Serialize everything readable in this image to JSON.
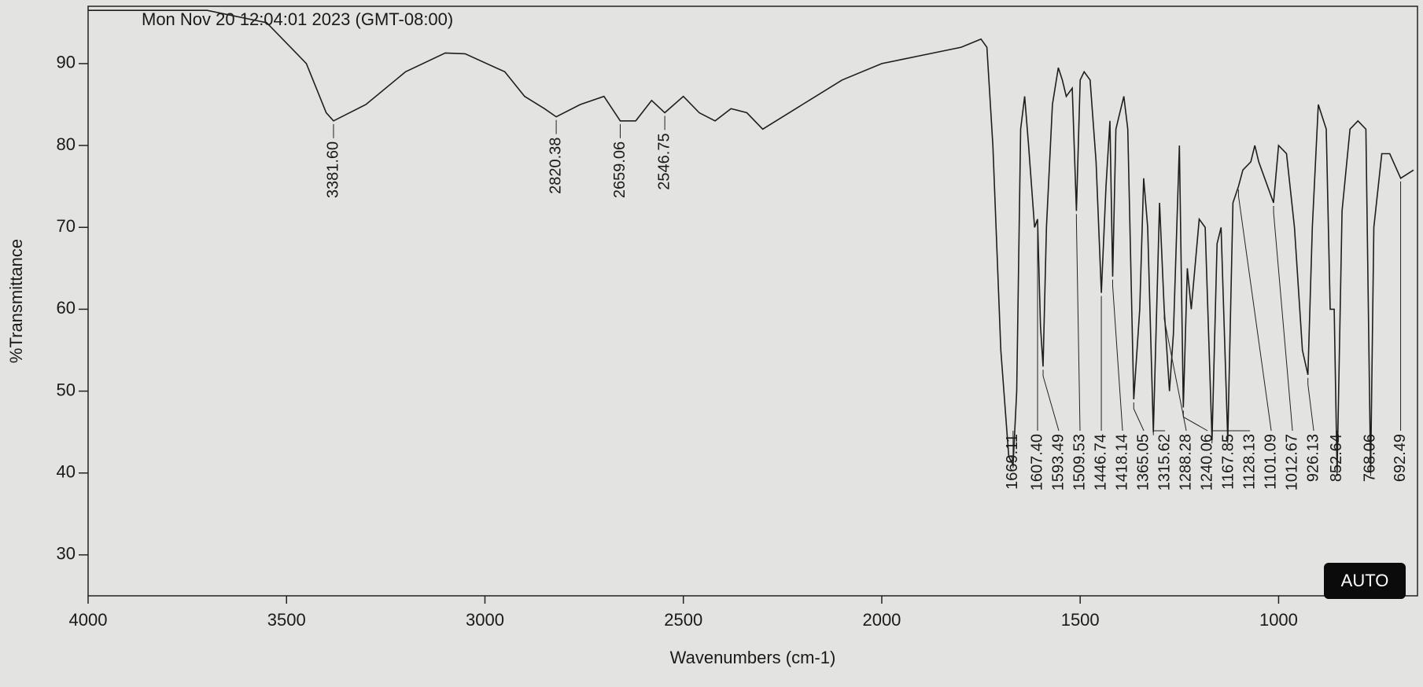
{
  "chart_data": {
    "type": "line",
    "title": "Mon Nov 20 12:04:01 2023 (GMT-08:00)",
    "x_label": "Wavenumbers (cm-1)",
    "y_label": "%Transmittance",
    "xlim": [
      4000,
      650
    ],
    "ylim": [
      25,
      97
    ],
    "xticks": [
      4000,
      3500,
      3000,
      2500,
      2000,
      1500,
      1000
    ],
    "yticks": [
      30,
      40,
      50,
      60,
      70,
      80,
      90
    ],
    "color": "#1e1e1e",
    "x": [
      4000,
      3700,
      3550,
      3450,
      3400,
      3381.6,
      3300,
      3200,
      3100,
      3050,
      2950,
      2900,
      2850,
      2820.38,
      2760,
      2700,
      2659.06,
      2620,
      2580,
      2546.75,
      2500,
      2460,
      2420,
      2380,
      2340,
      2300,
      2200,
      2100,
      2000,
      1950,
      1900,
      1800,
      1750,
      1735,
      1720,
      1700,
      1680,
      1669.11,
      1660,
      1650,
      1640,
      1630,
      1615,
      1607.4,
      1600,
      1593.49,
      1585,
      1570,
      1555,
      1545,
      1535,
      1520,
      1509.53,
      1500,
      1490,
      1475,
      1460,
      1446.74,
      1435,
      1425,
      1418.14,
      1410,
      1400,
      1390,
      1380,
      1365.05,
      1350,
      1340,
      1330,
      1315.62,
      1300,
      1288.28,
      1275,
      1265,
      1250,
      1240.06,
      1230,
      1220,
      1200,
      1185,
      1167.85,
      1155,
      1145,
      1128.13,
      1115,
      1101.09,
      1090,
      1070,
      1060,
      1050,
      1012.67,
      1000,
      980,
      960,
      940,
      926.13,
      915,
      900,
      880,
      870,
      860,
      852.64,
      840,
      820,
      800,
      780,
      768.06,
      760,
      740,
      720,
      692.49,
      660
    ],
    "values": [
      96.5,
      96.5,
      95,
      90,
      84,
      83,
      85,
      89,
      91.3,
      91.2,
      89,
      86,
      84.5,
      83.5,
      85,
      86,
      83,
      83,
      85.5,
      84,
      86,
      84,
      83,
      84.5,
      84,
      82,
      85,
      88,
      90,
      90.5,
      91,
      92,
      93,
      92,
      80,
      55,
      42,
      41,
      50,
      82,
      86,
      80,
      70,
      71,
      58,
      53,
      70,
      85,
      89.5,
      88,
      86,
      87,
      72,
      88,
      89,
      88,
      78,
      62,
      75,
      83,
      64,
      82,
      84,
      86,
      82,
      49,
      60,
      76,
      70,
      45,
      73,
      60,
      50,
      57,
      80,
      48,
      65,
      60,
      71,
      70,
      44,
      68,
      70,
      44,
      73,
      75,
      77,
      78,
      80,
      78,
      73,
      80,
      79,
      70,
      55,
      52,
      70,
      85,
      82,
      60,
      60,
      40,
      72,
      82,
      83,
      82,
      40,
      70,
      79,
      79,
      76,
      77
    ],
    "annotations": [
      {
        "value": 3381.6,
        "label": "3381.60",
        "y": 83
      },
      {
        "value": 2820.38,
        "label": "2820.38",
        "y": 83.5
      },
      {
        "value": 2659.06,
        "label": "2659.06",
        "y": 83
      },
      {
        "value": 2546.75,
        "label": "2546.75",
        "y": 84
      },
      {
        "value": 1669.11,
        "label": "1669.11",
        "y": 41
      },
      {
        "value": 1607.4,
        "label": "1607.40",
        "y": 71
      },
      {
        "value": 1593.49,
        "label": "1593.49",
        "y": 53
      },
      {
        "value": 1509.53,
        "label": "1509.53",
        "y": 72
      },
      {
        "value": 1446.74,
        "label": "1446.74",
        "y": 62
      },
      {
        "value": 1418.14,
        "label": "1418.14",
        "y": 64
      },
      {
        "value": 1365.05,
        "label": "1365.05",
        "y": 49
      },
      {
        "value": 1315.62,
        "label": "1315.62",
        "y": 45
      },
      {
        "value": 1288.28,
        "label": "1288.28",
        "y": 60
      },
      {
        "value": 1240.06,
        "label": "1240.06",
        "y": 48
      },
      {
        "value": 1167.85,
        "label": "1167.85",
        "y": 44
      },
      {
        "value": 1128.13,
        "label": "1128.13",
        "y": 44
      },
      {
        "value": 1101.09,
        "label": "1101.09",
        "y": 75
      },
      {
        "value": 1012.67,
        "label": "1012.67",
        "y": 73
      },
      {
        "value": 926.13,
        "label": "926.13",
        "y": 52
      },
      {
        "value": 852.64,
        "label": "852.64",
        "y": 40
      },
      {
        "value": 768.06,
        "label": "768.06",
        "y": 40
      },
      {
        "value": 692.49,
        "label": "692.49",
        "y": 76
      }
    ]
  },
  "ui": {
    "button": "AUTO"
  }
}
